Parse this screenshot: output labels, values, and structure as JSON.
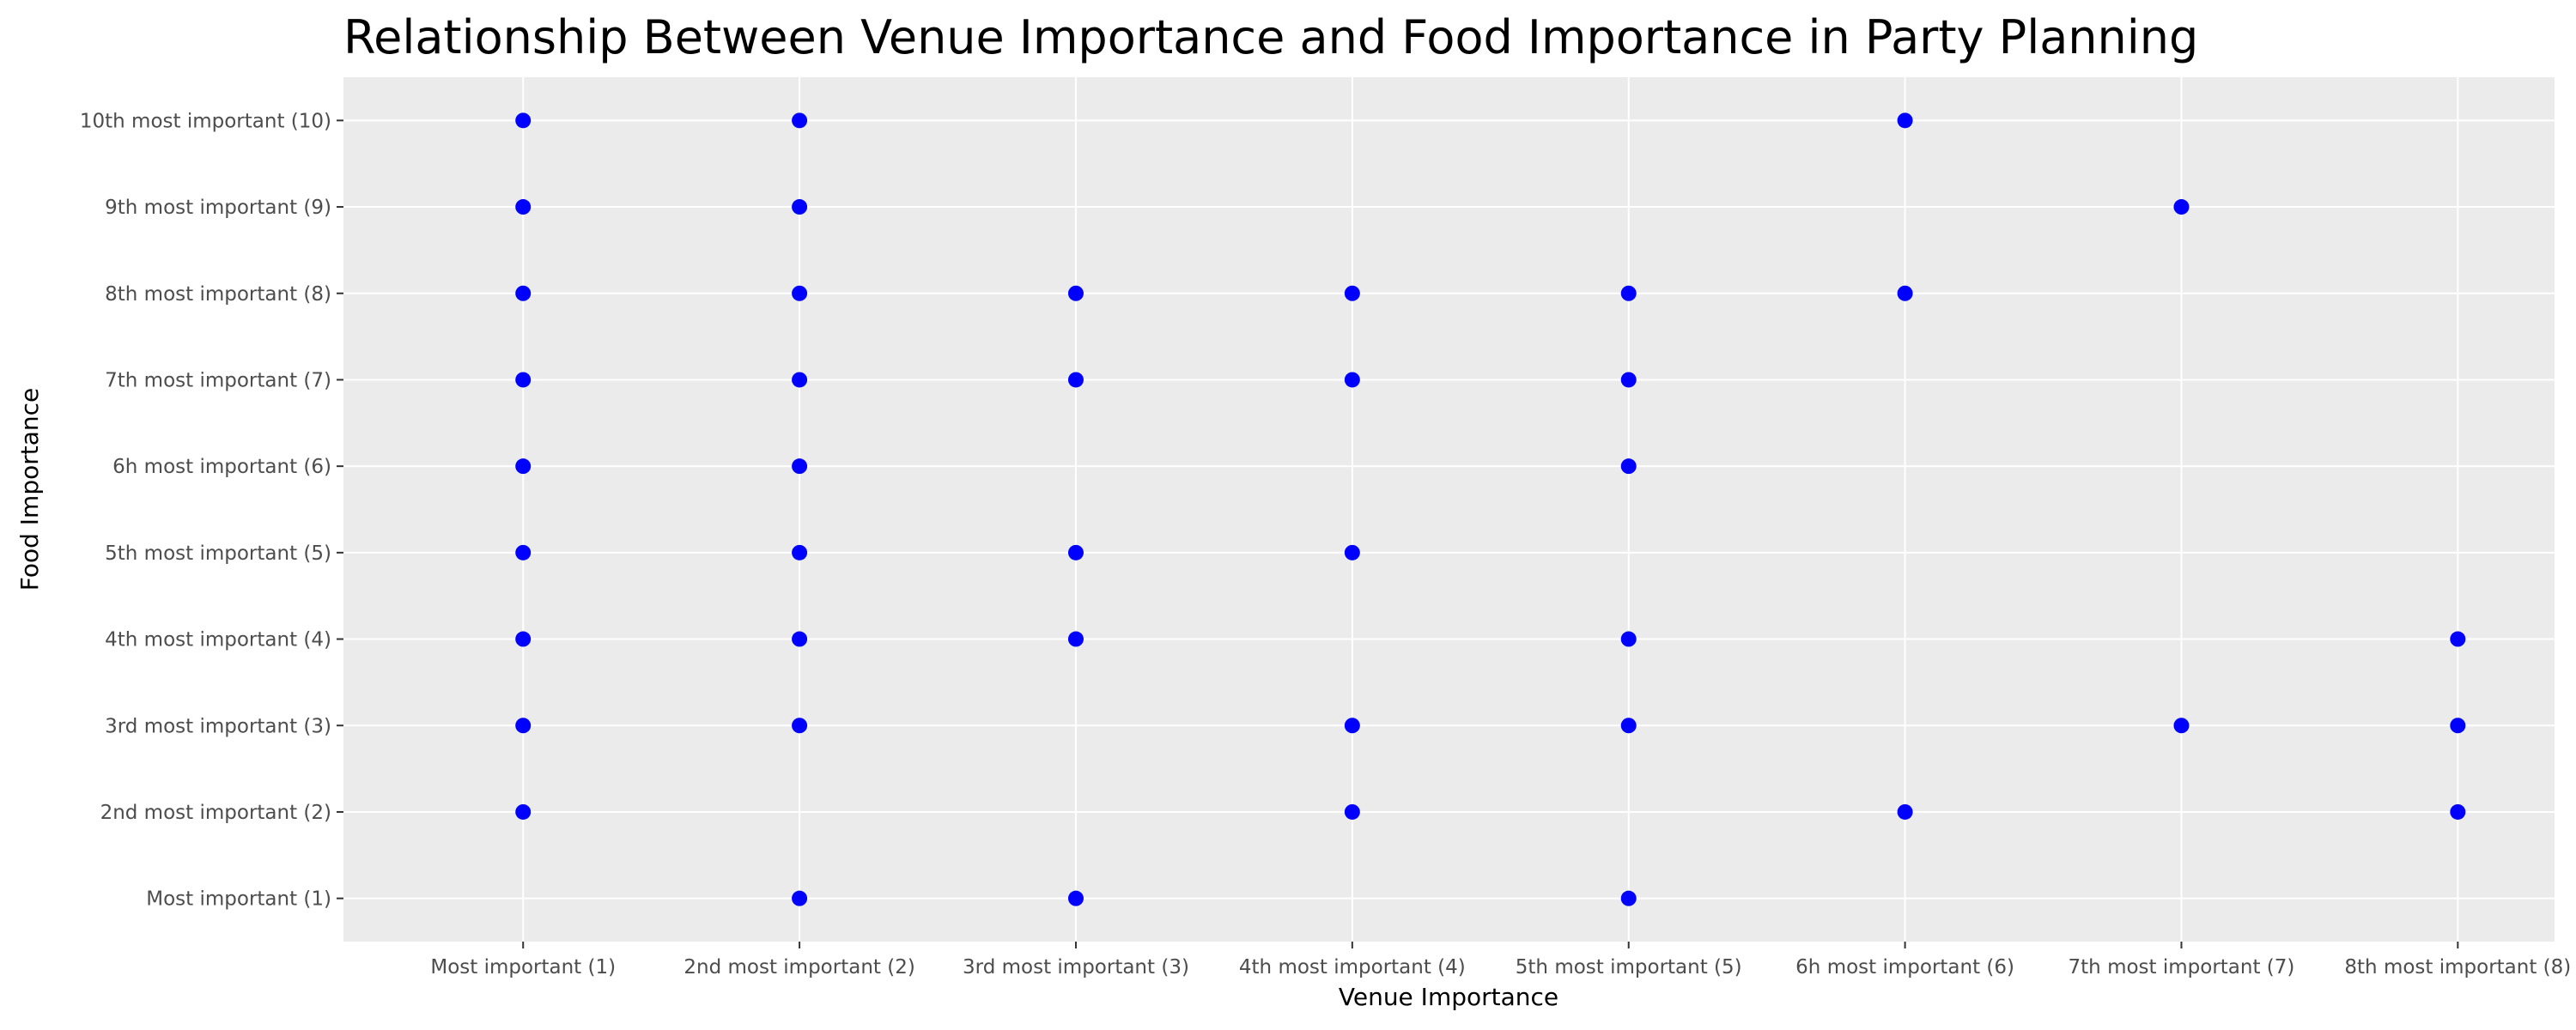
{
  "chart_data": {
    "type": "scatter",
    "title": "Relationship Between Venue Importance and Food Importance in Party Planning",
    "xlabel": "Venue Importance",
    "ylabel": "Food Importance",
    "x_categories": [
      "Most important (1)",
      "2nd most important (2)",
      "3rd most important (3)",
      "4th most important (4)",
      "5th most important (5)",
      "6h most important (6)",
      "7th most important (7)",
      "8th most important (8)"
    ],
    "y_categories": [
      "Most important (1)",
      "2nd most important (2)",
      "3rd most important (3)",
      "4th most important (4)",
      "5th most important (5)",
      "6h most important (6)",
      "7th most important (7)",
      "8th most important (8)",
      "9th most important (9)",
      "10th most important (10)"
    ],
    "xlim": [
      0.35,
      8.35
    ],
    "ylim": [
      0.5,
      10.5
    ],
    "grid": true,
    "marker_color": "#0000ff",
    "panel_color": "#ebebeb",
    "grid_color": "#ffffff",
    "points": [
      {
        "x": 1,
        "y": 10
      },
      {
        "x": 1,
        "y": 9
      },
      {
        "x": 1,
        "y": 8
      },
      {
        "x": 1,
        "y": 7
      },
      {
        "x": 1,
        "y": 6
      },
      {
        "x": 1,
        "y": 5
      },
      {
        "x": 1,
        "y": 4
      },
      {
        "x": 1,
        "y": 3
      },
      {
        "x": 1,
        "y": 2
      },
      {
        "x": 2,
        "y": 10
      },
      {
        "x": 2,
        "y": 9
      },
      {
        "x": 2,
        "y": 8
      },
      {
        "x": 2,
        "y": 7
      },
      {
        "x": 2,
        "y": 6
      },
      {
        "x": 2,
        "y": 5
      },
      {
        "x": 2,
        "y": 4
      },
      {
        "x": 2,
        "y": 3
      },
      {
        "x": 2,
        "y": 1
      },
      {
        "x": 3,
        "y": 8
      },
      {
        "x": 3,
        "y": 7
      },
      {
        "x": 3,
        "y": 5
      },
      {
        "x": 3,
        "y": 4
      },
      {
        "x": 3,
        "y": 1
      },
      {
        "x": 4,
        "y": 8
      },
      {
        "x": 4,
        "y": 7
      },
      {
        "x": 4,
        "y": 5
      },
      {
        "x": 4,
        "y": 3
      },
      {
        "x": 4,
        "y": 2
      },
      {
        "x": 5,
        "y": 8
      },
      {
        "x": 5,
        "y": 7
      },
      {
        "x": 5,
        "y": 6
      },
      {
        "x": 5,
        "y": 4
      },
      {
        "x": 5,
        "y": 3
      },
      {
        "x": 5,
        "y": 1
      },
      {
        "x": 6,
        "y": 10
      },
      {
        "x": 6,
        "y": 8
      },
      {
        "x": 6,
        "y": 2
      },
      {
        "x": 7,
        "y": 9
      },
      {
        "x": 7,
        "y": 3
      },
      {
        "x": 8,
        "y": 4
      },
      {
        "x": 8,
        "y": 3
      },
      {
        "x": 8,
        "y": 2
      }
    ]
  }
}
